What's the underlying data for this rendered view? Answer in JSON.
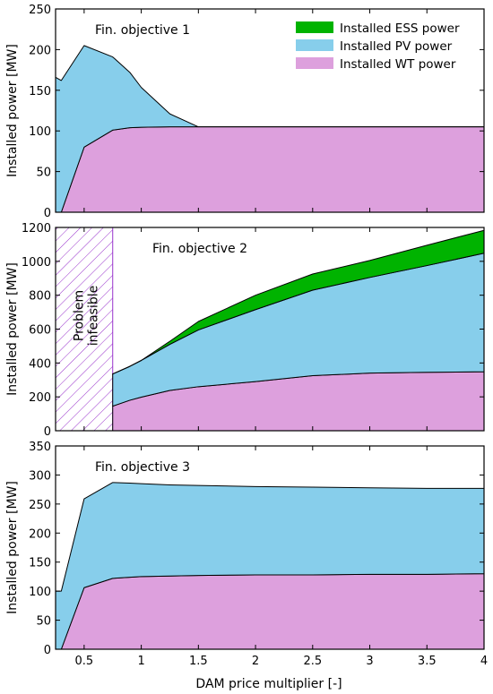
{
  "colors": {
    "ess": "#00b300",
    "pv": "#87ceeb",
    "wt": "#dda0dd",
    "hatch": "#9932cc"
  },
  "legend": {
    "position": "top-right",
    "entries": [
      {
        "label": "Installed ESS power",
        "color": "#00b300"
      },
      {
        "label": "Installed PV power",
        "color": "#87ceeb"
      },
      {
        "label": "Installed WT power",
        "color": "#dda0dd"
      }
    ]
  },
  "xlabel": "DAM price multiplier [-]",
  "chart_data": [
    {
      "type": "area",
      "title": "Fin. objective 1",
      "xlabel": "",
      "ylabel": "Installed power [MW]",
      "xlim": [
        0.25,
        4.0
      ],
      "ylim": [
        0,
        250
      ],
      "xticks": [
        0.5,
        1,
        1.5,
        2,
        2.5,
        3,
        3.5,
        4
      ],
      "yticks": [
        0,
        50,
        100,
        150,
        200,
        250
      ],
      "grid": false,
      "x": [
        0.25,
        0.3,
        0.5,
        0.75,
        0.9,
        1.0,
        1.25,
        1.5,
        2.0,
        2.5,
        3.0,
        3.5,
        4.0
      ],
      "series": [
        {
          "name": "Installed WT power",
          "color": "#dda0dd",
          "values": [
            0,
            0,
            80,
            101,
            104,
            104.5,
            105,
            105,
            105,
            105,
            105,
            105,
            105
          ]
        },
        {
          "name": "Installed PV power",
          "color": "#87ceeb",
          "values": [
            166,
            162,
            125,
            90,
            68,
            49,
            16,
            0,
            0,
            0,
            0,
            0,
            0
          ]
        },
        {
          "name": "Installed ESS power",
          "color": "#00b300",
          "values": [
            0,
            0,
            0,
            0,
            0,
            0,
            0,
            0,
            0,
            0,
            0,
            0,
            0
          ]
        }
      ]
    },
    {
      "type": "area",
      "title": "Fin. objective 2",
      "xlabel": "",
      "ylabel": "Installed power [MW]",
      "xlim": [
        0.25,
        4.0
      ],
      "ylim": [
        0,
        1200
      ],
      "xticks": [
        0.5,
        1,
        1.5,
        2,
        2.5,
        3,
        3.5,
        4
      ],
      "yticks": [
        0,
        200,
        400,
        600,
        800,
        1000,
        1200
      ],
      "grid": false,
      "infeasible_region": {
        "x_range": [
          0.25,
          0.75
        ],
        "label": "Problem\ninfeasible"
      },
      "x": [
        0.75,
        0.9,
        1.0,
        1.25,
        1.5,
        2.0,
        2.5,
        3.0,
        3.5,
        4.0
      ],
      "series": [
        {
          "name": "Installed WT power",
          "color": "#dda0dd",
          "values": [
            145,
            180,
            198,
            238,
            260,
            290,
            325,
            340,
            345,
            348
          ]
        },
        {
          "name": "Installed PV power",
          "color": "#87ceeb",
          "values": [
            190,
            200,
            217,
            272,
            335,
            425,
            505,
            565,
            630,
            700
          ]
        },
        {
          "name": "Installed ESS power",
          "color": "#00b300",
          "values": [
            0,
            0,
            0,
            18,
            50,
            85,
            95,
            100,
            120,
            135
          ]
        }
      ]
    },
    {
      "type": "area",
      "title": "Fin. objective 3",
      "xlabel": "DAM price multiplier [-]",
      "ylabel": "Installed power [MW]",
      "xlim": [
        0.25,
        4.0
      ],
      "ylim": [
        0,
        350
      ],
      "xticks": [
        0.5,
        1,
        1.5,
        2,
        2.5,
        3,
        3.5,
        4
      ],
      "yticks": [
        0,
        50,
        100,
        150,
        200,
        250,
        300,
        350
      ],
      "grid": false,
      "x": [
        0.25,
        0.3,
        0.5,
        0.75,
        0.9,
        1.0,
        1.25,
        1.5,
        2.0,
        2.5,
        3.0,
        3.5,
        4.0
      ],
      "series": [
        {
          "name": "Installed WT power",
          "color": "#dda0dd",
          "values": [
            0,
            0,
            106,
            122,
            124,
            125,
            126,
            127,
            128,
            128,
            129,
            129,
            130
          ]
        },
        {
          "name": "Installed PV power",
          "color": "#87ceeb",
          "values": [
            100,
            100,
            153,
            165,
            162,
            160,
            157,
            155,
            152,
            151,
            149,
            148,
            147
          ]
        },
        {
          "name": "Installed ESS power",
          "color": "#00b300",
          "values": [
            0,
            0,
            0,
            0,
            0,
            0,
            0,
            0,
            0,
            0,
            0,
            0,
            0
          ]
        }
      ]
    }
  ]
}
